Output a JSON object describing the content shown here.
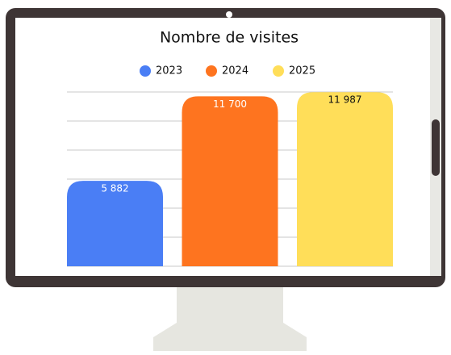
{
  "chart_data": {
    "type": "bar",
    "title": "Nombre de visites",
    "categories": [
      null
    ],
    "series": [
      {
        "name": "2023",
        "color": "#4a7ef5",
        "values": [
          5882
        ],
        "value_labels": [
          "5 882"
        ]
      },
      {
        "name": "2024",
        "color": "#fe741f",
        "values": [
          11700
        ],
        "value_labels": [
          "11 700"
        ]
      },
      {
        "name": "2025",
        "color": "#ffde59",
        "values": [
          11987
        ],
        "value_labels": [
          "11 987"
        ]
      }
    ],
    "ylim": [
      0,
      12000
    ],
    "yticks": [
      0,
      2000,
      4000,
      6000,
      8000,
      10000,
      12000
    ],
    "grid": true,
    "legend": "top"
  }
}
